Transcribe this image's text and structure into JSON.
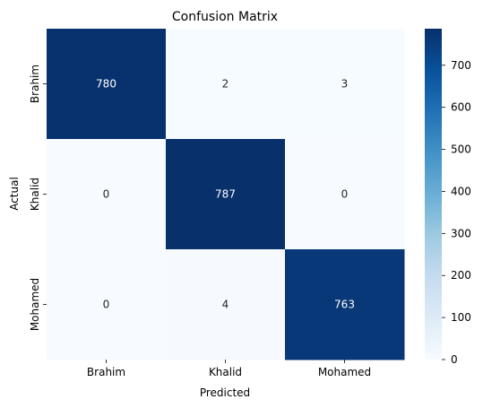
{
  "chart_data": {
    "type": "heatmap",
    "title": "Confusion Matrix",
    "xlabel": "Predicted",
    "ylabel": "Actual",
    "x_categories": [
      "Brahim",
      "Khalid",
      "Mohamed"
    ],
    "y_categories": [
      "Brahim",
      "Khalid",
      "Mohamed"
    ],
    "values": [
      [
        780,
        2,
        3
      ],
      [
        0,
        787,
        0
      ],
      [
        0,
        4,
        763
      ]
    ],
    "colormap": "Blues",
    "colorbar": {
      "min": 0,
      "max": 787,
      "ticks": [
        0,
        100,
        200,
        300,
        400,
        500,
        600,
        700
      ]
    },
    "colors": {
      "low": "#f7fbff",
      "high": "#08306b"
    }
  }
}
